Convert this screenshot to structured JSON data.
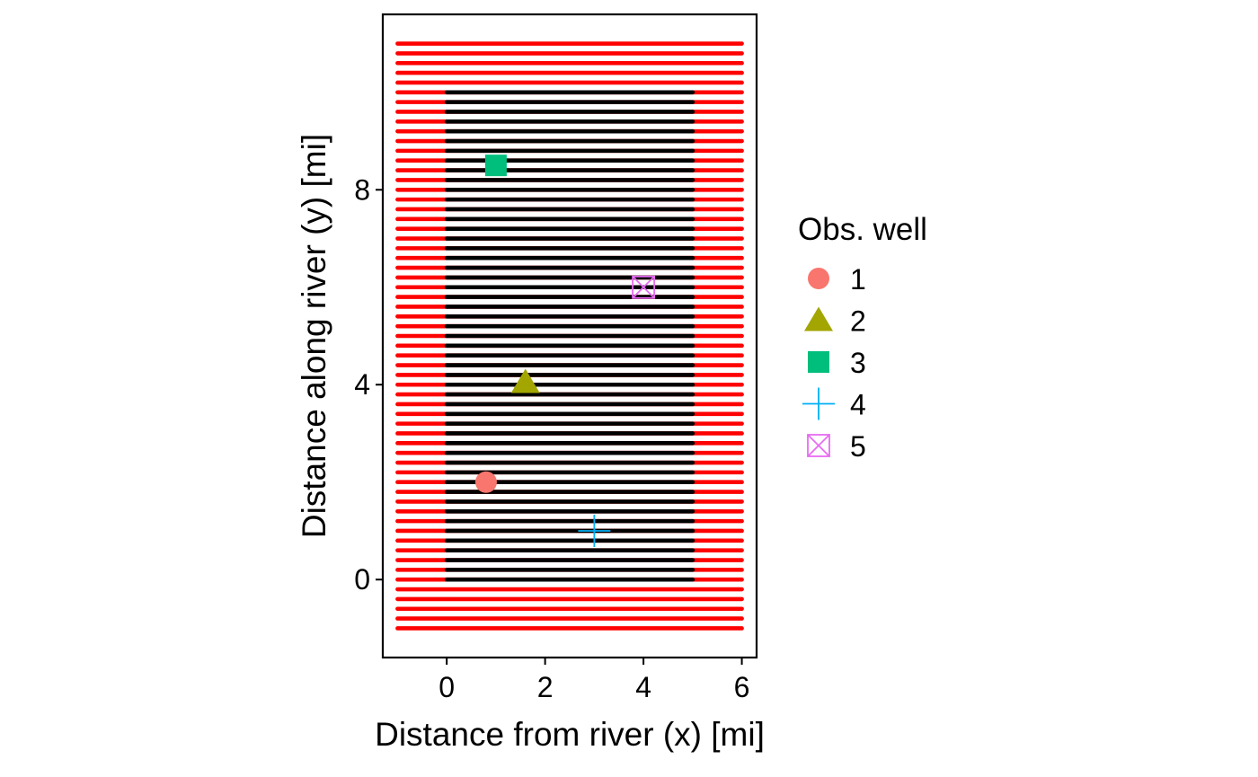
{
  "chart_data": {
    "type": "scatter",
    "xlabel": "Distance from river (x) [mi]",
    "ylabel": "Distance along river (y) [mi]",
    "xlim": [
      -1.3,
      6.3
    ],
    "ylim": [
      -1.6,
      11.6
    ],
    "x_ticks": [
      "0",
      "2",
      "4",
      "6"
    ],
    "y_ticks": [
      "0",
      "4",
      "8"
    ],
    "x_tick_values": [
      0,
      2,
      4,
      6
    ],
    "y_tick_values": [
      0,
      4,
      8
    ],
    "grid": false,
    "legend_position": "right",
    "legend_title": "Obs. well",
    "background_grid": {
      "outer_color": "#ff0000",
      "inner_color": "#000000",
      "outer_x_range": [
        -1,
        6
      ],
      "outer_y_range": [
        -1,
        11
      ],
      "inner_x_range": [
        0,
        5
      ],
      "inner_y_range": [
        0,
        10
      ],
      "row_spacing": 0.2
    },
    "wells": [
      {
        "label": "1",
        "x": 0.8,
        "y": 2.0,
        "shape": "circle",
        "color": "#F8766D"
      },
      {
        "label": "2",
        "x": 1.6,
        "y": 4.05,
        "shape": "triangle",
        "color": "#A3A500"
      },
      {
        "label": "3",
        "x": 1.0,
        "y": 8.5,
        "shape": "square",
        "color": "#00BF7D"
      },
      {
        "label": "4",
        "x": 3.0,
        "y": 1.0,
        "shape": "plus",
        "color": "#00B0F6"
      },
      {
        "label": "5",
        "x": 4.0,
        "y": 6.0,
        "shape": "boxcross",
        "color": "#E76BF3"
      }
    ]
  }
}
